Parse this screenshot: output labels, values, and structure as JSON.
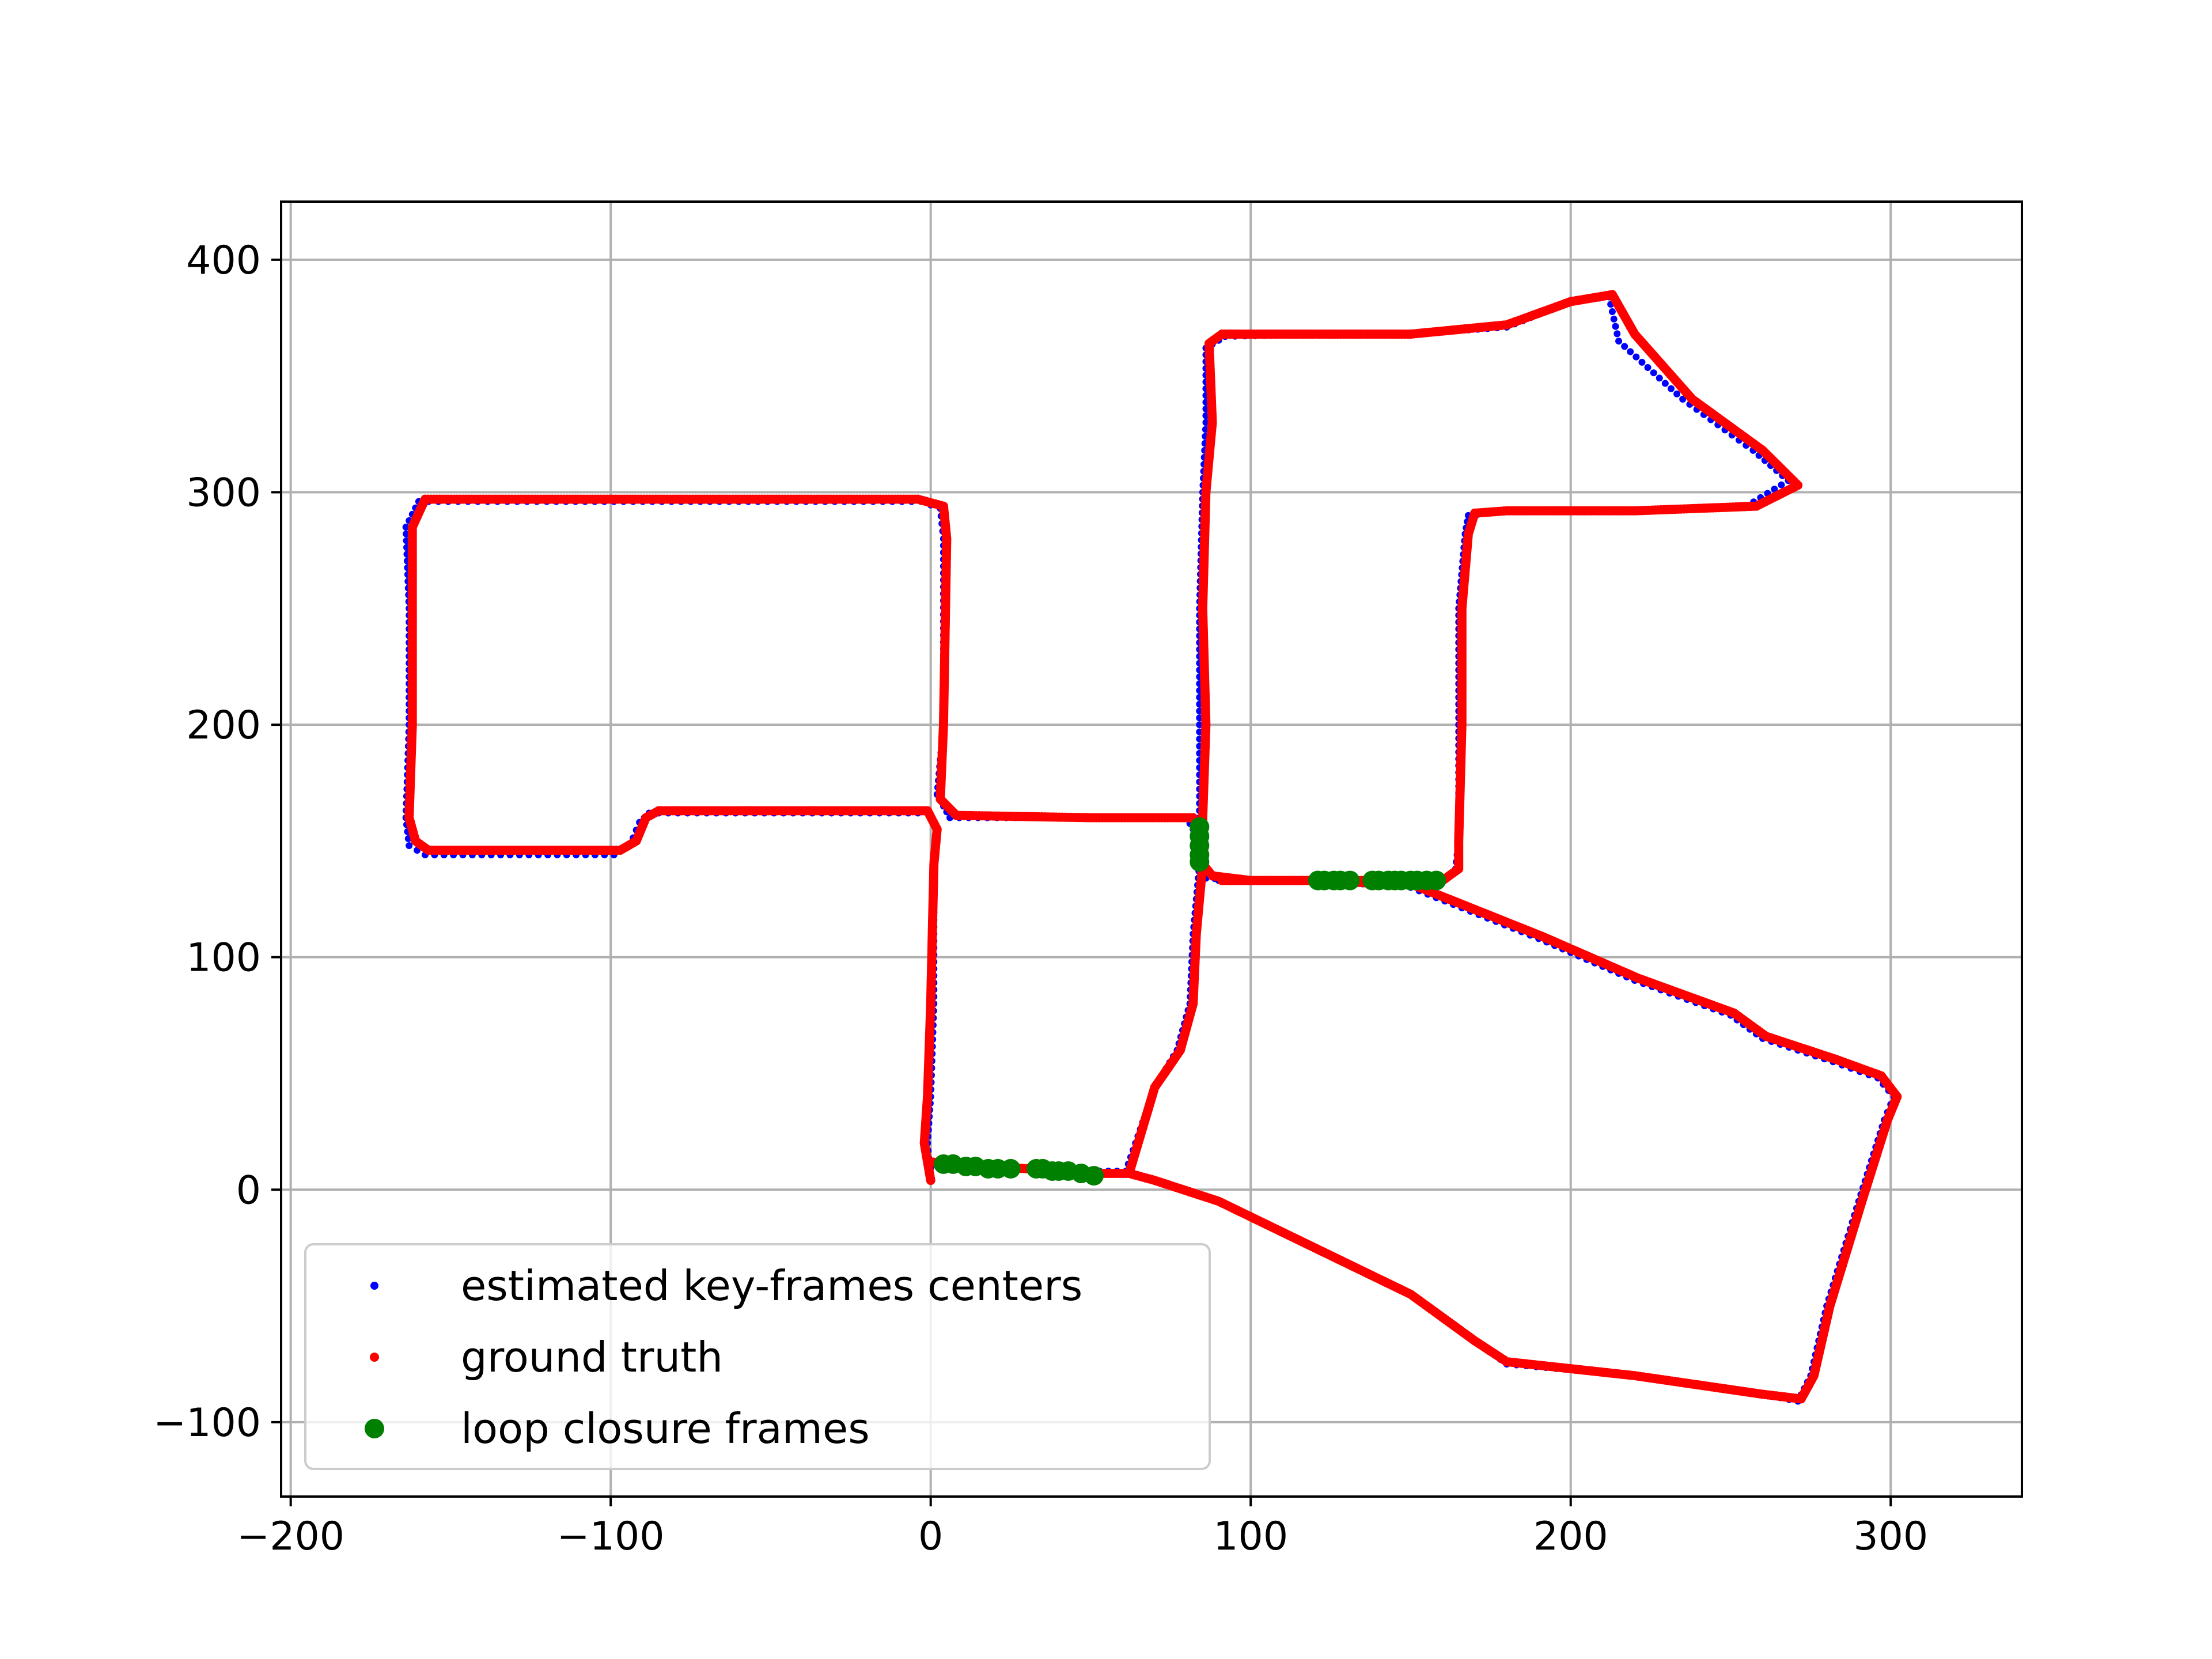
{
  "chart_data": {
    "type": "scatter",
    "title": "",
    "xlabel": "",
    "ylabel": "",
    "xlim": [
      -203,
      341
    ],
    "ylim": [
      -132,
      425
    ],
    "xticks": [
      -200,
      -100,
      0,
      100,
      200,
      300
    ],
    "yticks": [
      -100,
      0,
      100,
      200,
      300,
      400
    ],
    "xtick_labels": [
      "−200",
      "−100",
      "0",
      "100",
      "200",
      "300"
    ],
    "ytick_labels": [
      "−100",
      "0",
      "100",
      "200",
      "300",
      "400"
    ],
    "grid": true,
    "legend_position": "lower-left",
    "series": [
      {
        "name": "estimated key-frames centers",
        "color": "#0000ff",
        "marker": "small-dot",
        "path": [
          [
            0,
            4
          ],
          [
            -1,
            20
          ],
          [
            0,
            40
          ],
          [
            1,
            80
          ],
          [
            1,
            140
          ],
          [
            2,
            155
          ],
          [
            -1,
            162
          ],
          [
            -88,
            162
          ],
          [
            -91,
            158
          ],
          [
            -94,
            148
          ],
          [
            -99,
            144
          ],
          [
            -158,
            144
          ],
          [
            -163,
            148
          ],
          [
            -164,
            160
          ],
          [
            -163,
            200
          ],
          [
            -163,
            250
          ],
          [
            -164,
            285
          ],
          [
            -160,
            296
          ],
          [
            -120,
            296
          ],
          [
            -60,
            296
          ],
          [
            -3,
            296
          ],
          [
            3,
            293
          ],
          [
            4,
            280
          ],
          [
            4,
            200
          ],
          [
            2,
            170
          ],
          [
            6,
            160
          ],
          [
            50,
            160
          ],
          [
            80,
            160
          ],
          [
            84,
            150
          ],
          [
            84,
            140
          ],
          [
            86,
            134
          ],
          [
            100,
            133
          ],
          [
            130,
            133
          ],
          [
            160,
            133
          ],
          [
            164,
            138
          ],
          [
            165,
            150
          ],
          [
            165,
            200
          ],
          [
            165,
            250
          ],
          [
            167,
            282
          ],
          [
            168,
            290
          ],
          [
            180,
            292
          ],
          [
            220,
            292
          ],
          [
            255,
            294
          ],
          [
            268,
            305
          ],
          [
            257,
            318
          ],
          [
            235,
            340
          ],
          [
            215,
            365
          ],
          [
            212,
            384
          ],
          [
            200,
            382
          ],
          [
            180,
            371
          ],
          [
            150,
            368
          ],
          [
            120,
            368
          ],
          [
            92,
            367
          ],
          [
            86,
            362
          ],
          [
            86,
            330
          ],
          [
            85,
            300
          ],
          [
            84,
            250
          ],
          [
            84,
            200
          ],
          [
            84,
            160
          ],
          [
            84,
            140
          ],
          [
            82,
            110
          ],
          [
            81,
            80
          ],
          [
            77,
            60
          ],
          [
            70,
            44
          ],
          [
            61,
            8
          ],
          [
            50,
            8
          ],
          [
            40,
            8
          ],
          [
            20,
            10
          ],
          [
            5,
            10
          ],
          [
            0,
            12
          ],
          [
            0,
            4
          ]
        ],
        "path2": [
          [
            62,
            7
          ],
          [
            70,
            4
          ],
          [
            90,
            -5
          ],
          [
            120,
            -25
          ],
          [
            150,
            -45
          ],
          [
            170,
            -65
          ],
          [
            180,
            -75
          ],
          [
            220,
            -80
          ],
          [
            260,
            -88
          ],
          [
            271,
            -91
          ],
          [
            275,
            -80
          ],
          [
            280,
            -50
          ],
          [
            290,
            -5
          ],
          [
            298,
            30
          ],
          [
            301,
            40
          ],
          [
            296,
            48
          ],
          [
            282,
            55
          ],
          [
            260,
            65
          ],
          [
            250,
            75
          ],
          [
            220,
            90
          ],
          [
            190,
            108
          ],
          [
            150,
            130
          ],
          [
            120,
            133
          ],
          [
            90,
            133
          ]
        ]
      },
      {
        "name": "ground truth",
        "color": "#ff0000",
        "marker": "dot",
        "path": [
          [
            0,
            4
          ],
          [
            -2,
            20
          ],
          [
            -1,
            40
          ],
          [
            0,
            80
          ],
          [
            1,
            140
          ],
          [
            2,
            155
          ],
          [
            -1,
            163
          ],
          [
            -85,
            163
          ],
          [
            -89,
            160
          ],
          [
            -92,
            150
          ],
          [
            -97,
            146
          ],
          [
            -157,
            146
          ],
          [
            -161,
            150
          ],
          [
            -163,
            160
          ],
          [
            -162,
            200
          ],
          [
            -162,
            250
          ],
          [
            -162,
            285
          ],
          [
            -158,
            297
          ],
          [
            -120,
            297
          ],
          [
            -60,
            297
          ],
          [
            -4,
            297
          ],
          [
            4,
            294
          ],
          [
            5,
            280
          ],
          [
            4,
            200
          ],
          [
            3,
            168
          ],
          [
            8,
            161
          ],
          [
            50,
            160
          ],
          [
            82,
            160
          ],
          [
            85,
            150
          ],
          [
            85,
            140
          ],
          [
            88,
            135
          ],
          [
            100,
            133
          ],
          [
            130,
            133
          ],
          [
            160,
            133
          ],
          [
            165,
            138
          ],
          [
            165,
            150
          ],
          [
            166,
            200
          ],
          [
            166,
            250
          ],
          [
            168,
            282
          ],
          [
            170,
            291
          ],
          [
            180,
            292
          ],
          [
            220,
            292
          ],
          [
            258,
            294
          ],
          [
            271,
            303
          ],
          [
            260,
            318
          ],
          [
            238,
            340
          ],
          [
            220,
            368
          ],
          [
            213,
            385
          ],
          [
            200,
            382
          ],
          [
            180,
            372
          ],
          [
            150,
            368
          ],
          [
            120,
            368
          ],
          [
            91,
            368
          ],
          [
            87,
            364
          ],
          [
            88,
            330
          ],
          [
            86,
            300
          ],
          [
            85,
            250
          ],
          [
            86,
            200
          ],
          [
            85,
            160
          ],
          [
            85,
            140
          ],
          [
            83,
            110
          ],
          [
            82,
            80
          ],
          [
            78,
            60
          ],
          [
            70,
            44
          ],
          [
            62,
            7
          ],
          [
            50,
            7
          ],
          [
            40,
            8
          ],
          [
            20,
            10
          ],
          [
            5,
            11
          ],
          [
            0,
            12
          ]
        ],
        "path2": [
          [
            62,
            7
          ],
          [
            70,
            4
          ],
          [
            90,
            -5
          ],
          [
            120,
            -25
          ],
          [
            150,
            -45
          ],
          [
            170,
            -65
          ],
          [
            180,
            -74
          ],
          [
            220,
            -80
          ],
          [
            260,
            -88
          ],
          [
            272,
            -90
          ],
          [
            276,
            -80
          ],
          [
            281,
            -50
          ],
          [
            291,
            -5
          ],
          [
            299,
            30
          ],
          [
            302,
            40
          ],
          [
            297,
            49
          ],
          [
            283,
            56
          ],
          [
            261,
            66
          ],
          [
            251,
            76
          ],
          [
            221,
            91
          ],
          [
            191,
            109
          ],
          [
            151,
            131
          ],
          [
            121,
            133
          ],
          [
            91,
            133
          ]
        ]
      },
      {
        "name": "loop closure frames",
        "color": "#008000",
        "marker": "large-dot",
        "points": [
          [
            4,
            11
          ],
          [
            7,
            11
          ],
          [
            11,
            10
          ],
          [
            14,
            10
          ],
          [
            18,
            9
          ],
          [
            21,
            9
          ],
          [
            25,
            9
          ],
          [
            33,
            9
          ],
          [
            35,
            9
          ],
          [
            38,
            8
          ],
          [
            40,
            8
          ],
          [
            43,
            8
          ],
          [
            47,
            7
          ],
          [
            51,
            6
          ],
          [
            84,
            156
          ],
          [
            84,
            152
          ],
          [
            84,
            148
          ],
          [
            84,
            144
          ],
          [
            84,
            141
          ],
          [
            121,
            133
          ],
          [
            123,
            133
          ],
          [
            126,
            133
          ],
          [
            128,
            133
          ],
          [
            131,
            133
          ],
          [
            138,
            133
          ],
          [
            140,
            133
          ],
          [
            143,
            133
          ],
          [
            145,
            133
          ],
          [
            147,
            133
          ],
          [
            150,
            133
          ],
          [
            152,
            133
          ],
          [
            155,
            133
          ],
          [
            158,
            133
          ]
        ]
      }
    ]
  }
}
